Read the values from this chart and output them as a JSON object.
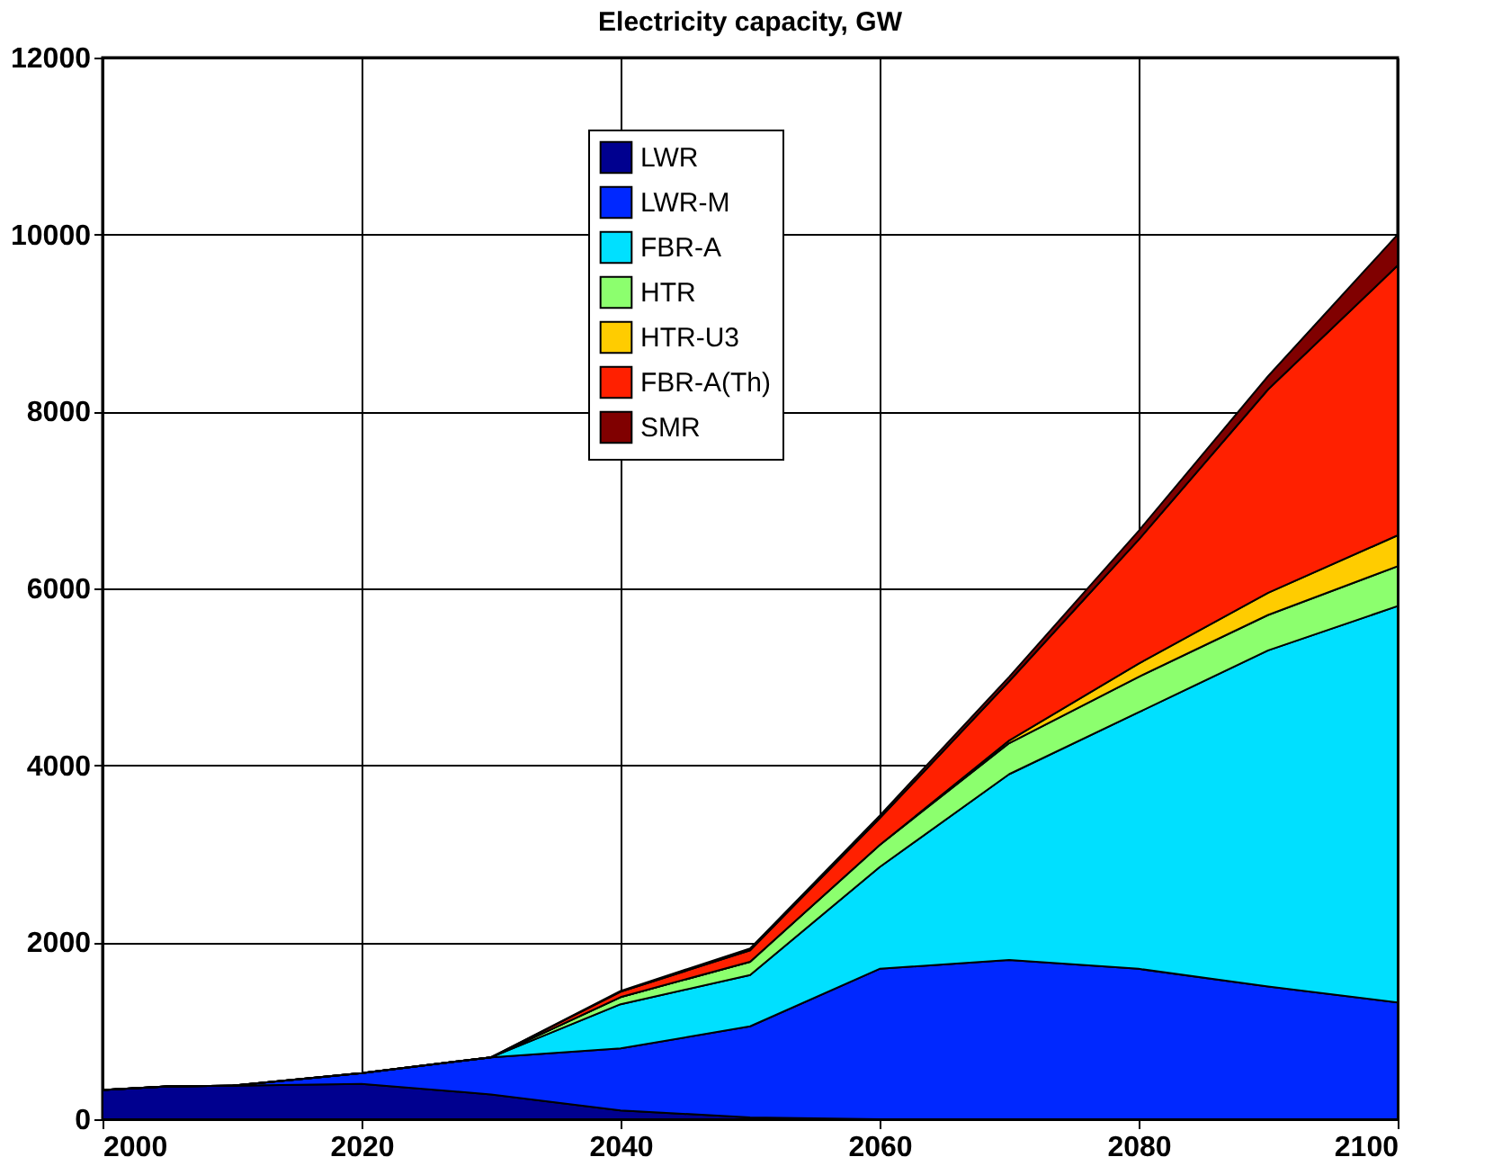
{
  "chart_data": {
    "type": "area",
    "title": "Electricity capacity, GW",
    "stacked": true,
    "x": [
      2000,
      2005,
      2010,
      2020,
      2030,
      2040,
      2050,
      2060,
      2070,
      2080,
      2090,
      2100
    ],
    "xlim": [
      2000,
      2100
    ],
    "xticks": [
      2000,
      2020,
      2040,
      2060,
      2080,
      2100
    ],
    "ylim": [
      0,
      12000
    ],
    "yticks": [
      0,
      2000,
      4000,
      6000,
      8000,
      10000,
      12000
    ],
    "grid": true,
    "legend": "top",
    "series": [
      {
        "name": "LWR",
        "color": "#00008f",
        "values": [
          330,
          370,
          380,
          400,
          280,
          100,
          20,
          0,
          0,
          0,
          0,
          0
        ]
      },
      {
        "name": "LWR-M",
        "color": "#0028ff",
        "values": [
          0,
          0,
          0,
          120,
          420,
          700,
          1030,
          1700,
          1800,
          1700,
          1500,
          1320
        ]
      },
      {
        "name": "FBR-A",
        "color": "#00e0ff",
        "values": [
          0,
          0,
          0,
          0,
          0,
          500,
          580,
          1150,
          2100,
          2900,
          3800,
          4480
        ]
      },
      {
        "name": "HTR",
        "color": "#8cff6e",
        "values": [
          0,
          0,
          0,
          0,
          0,
          80,
          150,
          250,
          350,
          400,
          400,
          450
        ]
      },
      {
        "name": "HTR-U3",
        "color": "#ffcc00",
        "values": [
          0,
          0,
          0,
          0,
          0,
          0,
          0,
          0,
          30,
          150,
          250,
          350
        ]
      },
      {
        "name": "FBR-A(Th)",
        "color": "#ff2000",
        "values": [
          0,
          0,
          0,
          0,
          0,
          60,
          130,
          300,
          670,
          1400,
          2300,
          3050
        ]
      },
      {
        "name": "SMR",
        "color": "#800000",
        "values": [
          0,
          0,
          0,
          0,
          0,
          10,
          20,
          30,
          50,
          100,
          150,
          350
        ]
      }
    ]
  }
}
